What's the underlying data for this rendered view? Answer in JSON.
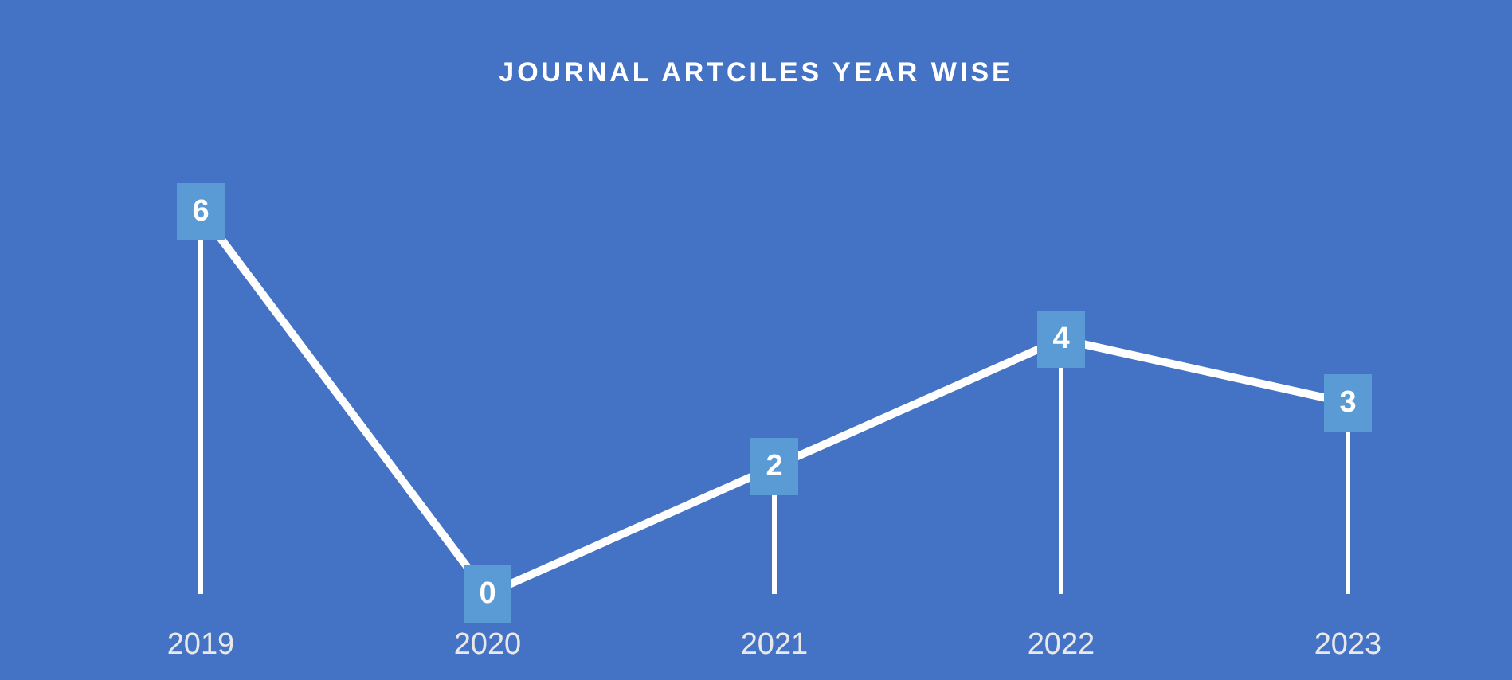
{
  "chart_data": {
    "type": "line",
    "title": "JOURNAL ARTCILES YEAR WISE",
    "categories": [
      "2019",
      "2020",
      "2021",
      "2022",
      "2023"
    ],
    "series": [
      {
        "color": "#ffffff",
        "values": [
          6,
          0,
          2,
          4,
          3
        ]
      }
    ],
    "data_labels": true,
    "marker": "square"
  }
}
